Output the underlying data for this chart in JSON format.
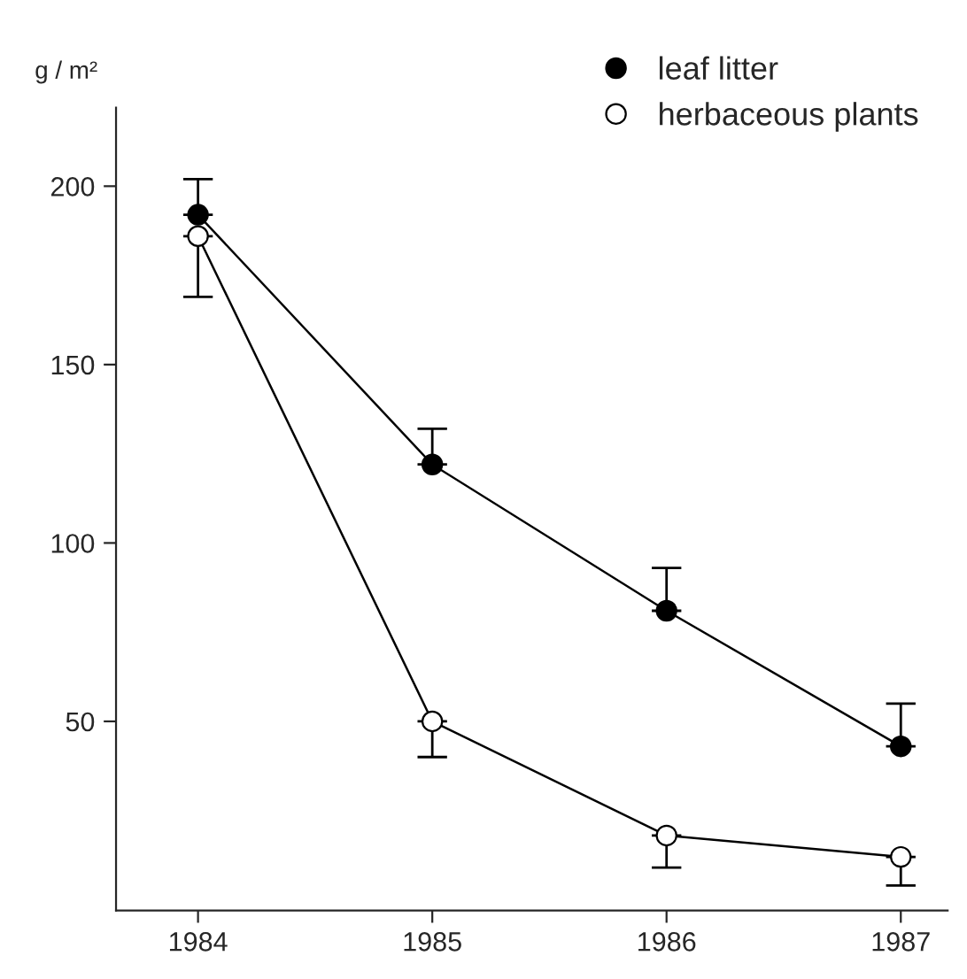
{
  "chart_data": {
    "type": "line",
    "ylabel": "g / m²",
    "x": [
      1984,
      1985,
      1986,
      1987
    ],
    "xlim": [
      1983.65,
      1987.2
    ],
    "xticks": [
      1984,
      1985,
      1986,
      1987
    ],
    "ylim": [
      -3,
      222
    ],
    "yticks": [
      50,
      100,
      150,
      200
    ],
    "series": [
      {
        "name": "leaf litter",
        "color": "#000000",
        "values": [
          192,
          122,
          81,
          43
        ],
        "errors": [
          [
            192,
            202
          ],
          [
            122,
            132
          ],
          [
            81,
            93
          ],
          [
            43,
            55
          ]
        ]
      },
      {
        "name": "herbaceous plants",
        "color": "#ffffff",
        "values": [
          186,
          50,
          18,
          12
        ],
        "errors": [
          [
            169,
            186
          ],
          [
            40,
            50
          ],
          [
            9,
            18
          ],
          [
            4,
            12
          ]
        ]
      }
    ],
    "marker": "circle",
    "line_style": "solid",
    "grid": false,
    "legend": "top right"
  }
}
